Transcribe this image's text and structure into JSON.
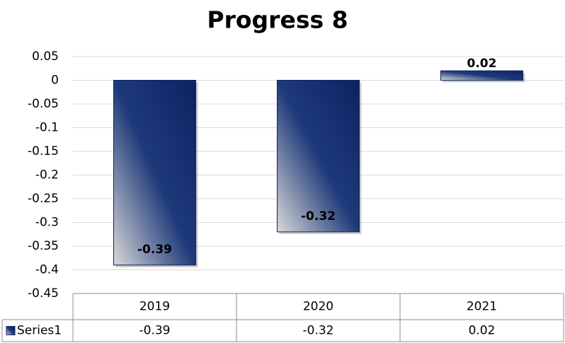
{
  "chart_data": {
    "type": "bar",
    "title": "Progress 8",
    "categories": [
      "2019",
      "2020",
      "2021"
    ],
    "series": [
      {
        "name": "Series1",
        "color": "#0d2263",
        "values": [
          -0.39,
          -0.32,
          0.02
        ]
      }
    ],
    "ylim": [
      -0.45,
      0.05
    ],
    "yticks": [
      0.05,
      0,
      -0.05,
      -0.1,
      -0.15,
      -0.2,
      -0.25,
      -0.3,
      -0.35,
      -0.4,
      -0.45
    ],
    "grid": true,
    "data_table": true
  }
}
